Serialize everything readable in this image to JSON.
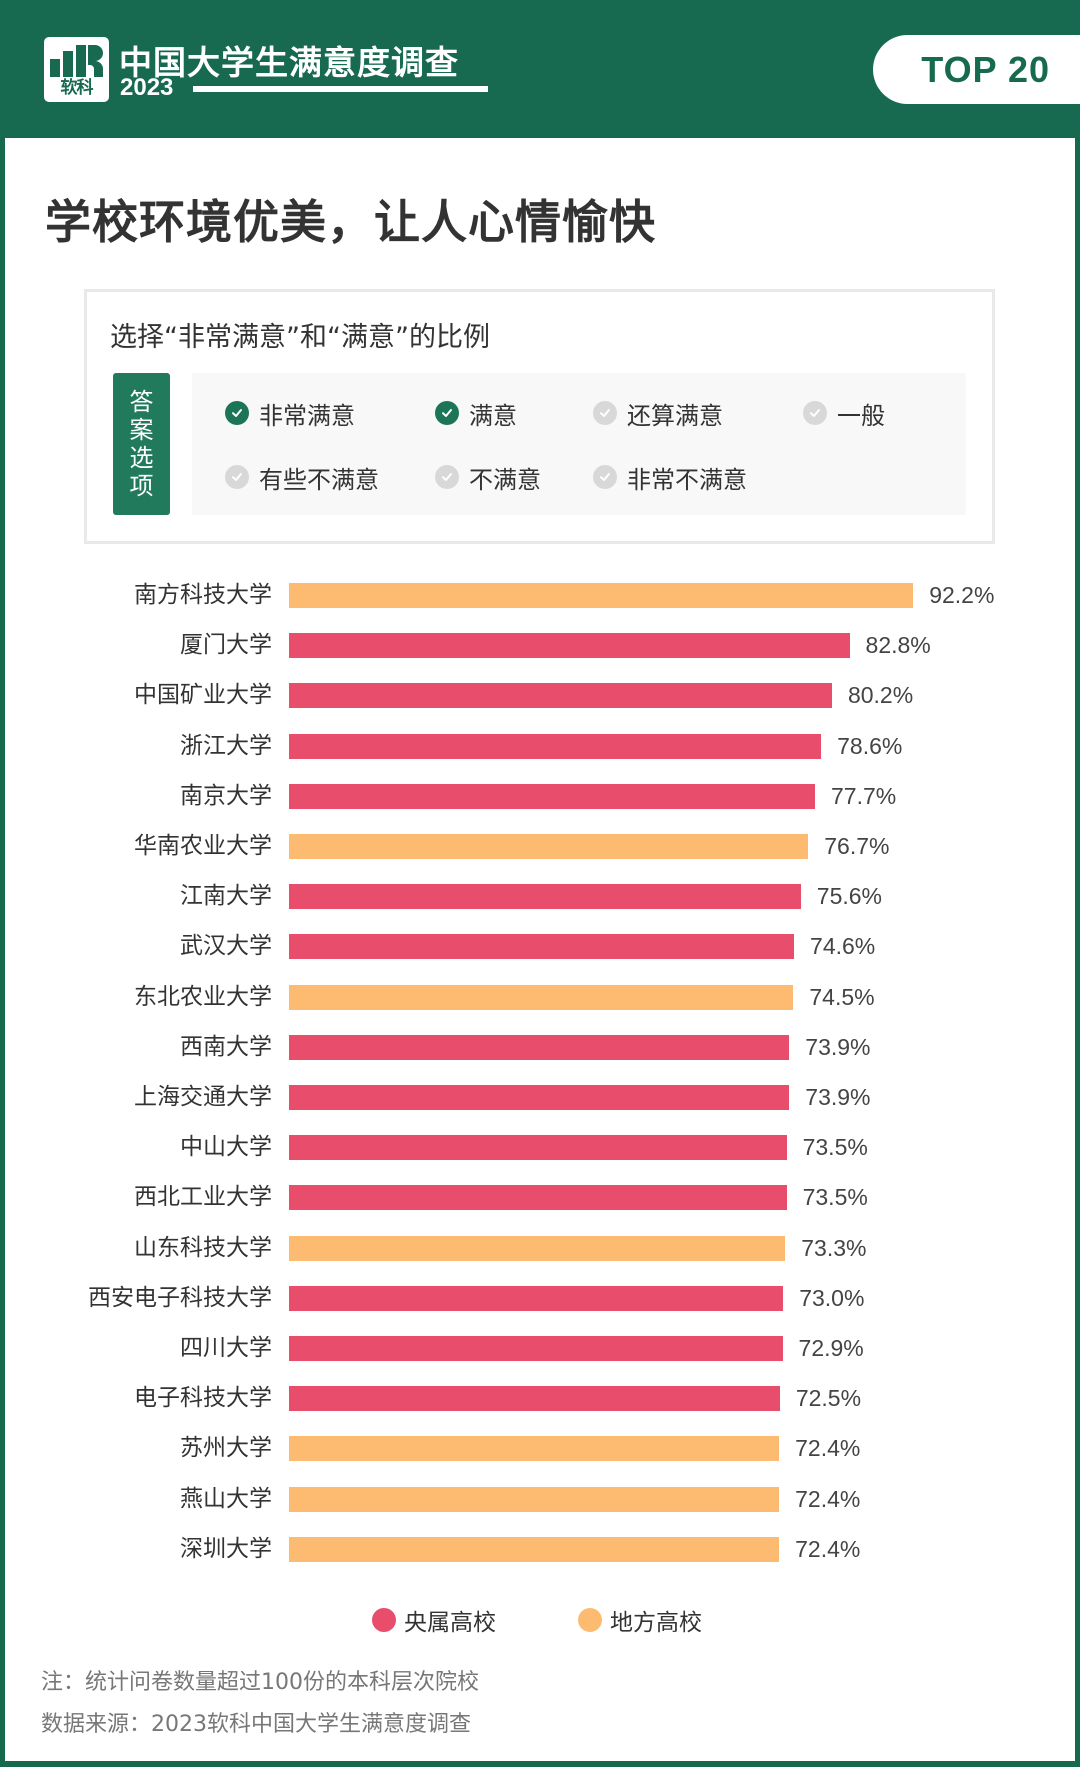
{
  "header": {
    "logo_text": "软科",
    "brand_title": "中国大学生满意度调查",
    "brand_year": "2023",
    "badge": "TOP 20"
  },
  "main": {
    "title": "学校环境优美，让人心情愉快",
    "options_box": {
      "subtitle": "选择“非常满意”和“满意”的比例",
      "tag_chars": [
        "答",
        "案",
        "选",
        "项"
      ],
      "options": [
        {
          "label": "非常满意",
          "selected": true
        },
        {
          "label": "满意",
          "selected": true
        },
        {
          "label": "还算满意",
          "selected": false
        },
        {
          "label": "一般",
          "selected": false
        },
        {
          "label": "有些不满意",
          "selected": false
        },
        {
          "label": "不满意",
          "selected": false
        },
        {
          "label": "非常不满意",
          "selected": false
        }
      ]
    }
  },
  "colors": {
    "brand_green": "#176a50",
    "central": "#e84d6b",
    "local": "#fdbb71",
    "check_on": "#1d7558",
    "check_off": "#d8d8d8"
  },
  "chart_data": {
    "type": "bar",
    "orientation": "horizontal",
    "title": "学校环境优美，让人心情愉快",
    "subtitle": "选择“非常满意”和“满意”的比例",
    "xlabel": "",
    "ylabel": "",
    "unit": "%",
    "xlim": [
      0,
      100
    ],
    "grid": false,
    "legend_position": "bottom",
    "categories": [
      "南方科技大学",
      "厦门大学",
      "中国矿业大学",
      "浙江大学",
      "南京大学",
      "华南农业大学",
      "江南大学",
      "武汉大学",
      "东北农业大学",
      "西南大学",
      "上海交通大学",
      "中山大学",
      "西北工业大学",
      "山东科技大学",
      "西安电子科技大学",
      "四川大学",
      "电子科技大学",
      "苏州大学",
      "燕山大学",
      "深圳大学"
    ],
    "values": [
      92.2,
      82.8,
      80.2,
      78.6,
      77.7,
      76.7,
      75.6,
      74.6,
      74.5,
      73.9,
      73.9,
      73.5,
      73.5,
      73.3,
      73.0,
      72.9,
      72.5,
      72.4,
      72.4,
      72.4
    ],
    "labels": [
      "92.2%",
      "82.8%",
      "80.2%",
      "78.6%",
      "77.7%",
      "76.7%",
      "75.6%",
      "74.6%",
      "74.5%",
      "73.9%",
      "73.9%",
      "73.5%",
      "73.5%",
      "73.3%",
      "73.0%",
      "72.9%",
      "72.5%",
      "72.4%",
      "72.4%",
      "72.4%"
    ],
    "groups": [
      "local",
      "central",
      "central",
      "central",
      "central",
      "local",
      "central",
      "central",
      "local",
      "central",
      "central",
      "central",
      "central",
      "local",
      "central",
      "central",
      "central",
      "local",
      "local",
      "local"
    ],
    "legend": [
      {
        "key": "central",
        "label": "央属高校",
        "color": "#e84d6b"
      },
      {
        "key": "local",
        "label": "地方高校",
        "color": "#fdbb71"
      }
    ]
  },
  "footer": {
    "note": "注：统计问卷数量超过100份的本科层次院校",
    "source": "数据来源：2023软科中国大学生满意度调查"
  }
}
